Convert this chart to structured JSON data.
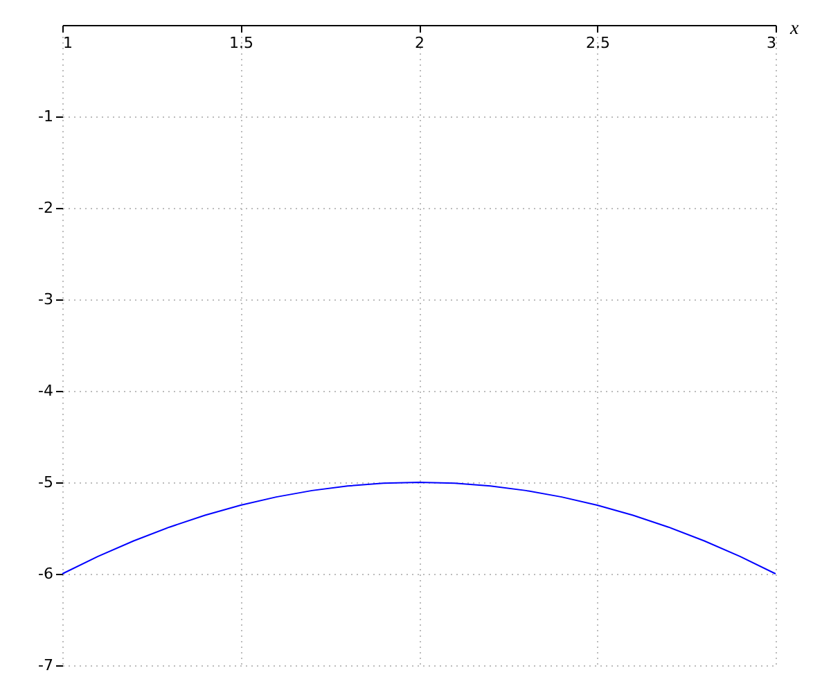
{
  "chart_data": {
    "type": "line",
    "xlabel": "x",
    "x": [
      1,
      1.1,
      1.2,
      1.3,
      1.4,
      1.5,
      1.6,
      1.7,
      1.8,
      1.9,
      2,
      2.1,
      2.2,
      2.3,
      2.4,
      2.5,
      2.6,
      2.7,
      2.8,
      2.9,
      3
    ],
    "series": [
      {
        "color": "#0000ff",
        "values": [
          -6,
          -5.81,
          -5.64,
          -5.49,
          -5.36,
          -5.25,
          -5.16,
          -5.09,
          -5.04,
          -5.01,
          -5,
          -5.01,
          -5.04,
          -5.09,
          -5.16,
          -5.25,
          -5.36,
          -5.49,
          -5.64,
          -5.81,
          -6
        ]
      }
    ],
    "xlim": [
      1,
      3
    ],
    "xticks": [
      1,
      1.5,
      2,
      2.5,
      3
    ],
    "ylim": [
      -7,
      0
    ],
    "yticks": [
      -7,
      -6,
      -5,
      -4,
      -3,
      -2,
      -1
    ],
    "grid": true,
    "marker": "none",
    "line_style": "solid"
  }
}
